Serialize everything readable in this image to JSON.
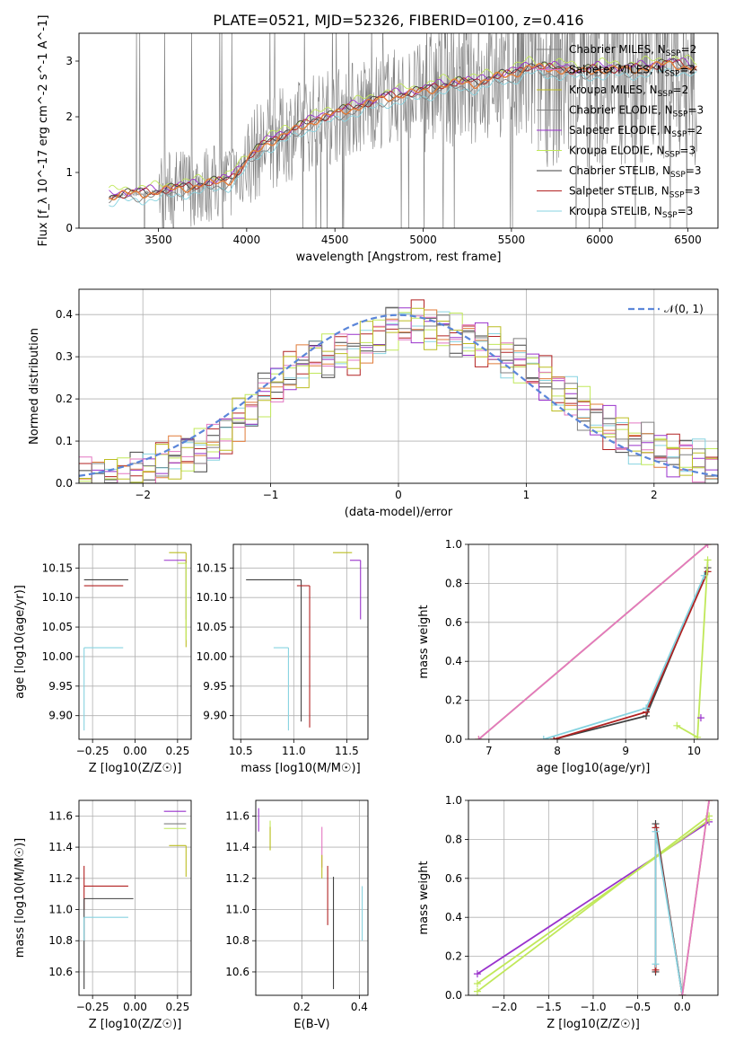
{
  "figure_title": "PLATE=0521, MJD=52326, FIBERID=0100, z=0.416",
  "colors": {
    "Chabrier MILES": "#808080",
    "Salpeter MILES": "#e377c2",
    "Kroupa MILES": "#bcbd22",
    "Chabrier ELODIE": "#7f7f7f",
    "Salpeter ELODIE": "#9932cc",
    "Kroupa ELODIE": "#c0e85a",
    "Chabrier STELIB": "#404040",
    "Salpeter STELIB": "#b22222",
    "Kroupa STELIB": "#87d3e0",
    "data": "#808080",
    "model_main": "#e07b39",
    "normal": "#5b86d9"
  },
  "chart_data": [
    {
      "id": "spectrum",
      "type": "line",
      "title": "PLATE=0521, MJD=52326, FIBERID=0100, z=0.416",
      "xlabel": "wavelength [Angstrom, rest frame]",
      "ylabel": "Flux [f_λ 10^-17 erg cm^-2 s^-1 A^-1]",
      "xlim": [
        3050,
        6670
      ],
      "ylim": [
        0,
        3.5
      ],
      "xticks": [
        3500,
        4000,
        4500,
        5000,
        5500,
        6000,
        6500
      ],
      "yticks": [
        0,
        1,
        2,
        3
      ],
      "grid": false,
      "legend_position": "upper right",
      "series": [
        {
          "name": "Chabrier MILES, N_SSP=2"
        },
        {
          "name": "Salpeter MILES, N_SSP=2"
        },
        {
          "name": "Kroupa MILES, N_SSP=2"
        },
        {
          "name": "Chabrier ELODIE, N_SSP=3"
        },
        {
          "name": "Salpeter ELODIE, N_SSP=2"
        },
        {
          "name": "Kroupa ELODIE, N_SSP=3"
        },
        {
          "name": "Chabrier STELIB, N_SSP=3"
        },
        {
          "name": "Salpeter STELIB, N_SSP=3"
        },
        {
          "name": "Kroupa STELIB, N_SSP=3"
        }
      ],
      "model_curve": {
        "x": [
          3220,
          3300,
          3400,
          3500,
          3600,
          3700,
          3800,
          3900,
          3950,
          4000,
          4100,
          4200,
          4300,
          4400,
          4500,
          4600,
          4700,
          4800,
          4900,
          5000,
          5100,
          5200,
          5300,
          5400,
          5500,
          5600,
          5700,
          5800,
          5900,
          6000,
          6100,
          6200,
          6300,
          6400,
          6500,
          6550
        ],
        "y": [
          0.55,
          0.6,
          0.62,
          0.65,
          0.7,
          0.75,
          0.8,
          0.85,
          1.0,
          1.2,
          1.5,
          1.65,
          1.8,
          1.95,
          2.05,
          2.15,
          2.25,
          2.35,
          2.4,
          2.45,
          2.55,
          2.6,
          2.6,
          2.7,
          2.75,
          2.9,
          2.85,
          2.85,
          2.8,
          2.85,
          2.85,
          2.85,
          2.9,
          2.95,
          2.9,
          2.85
        ]
      }
    },
    {
      "id": "residuals",
      "type": "line",
      "xlabel": "(data-model)/error",
      "ylabel": "Normed distribution",
      "xlim": [
        -2.5,
        2.5
      ],
      "ylim": [
        0,
        0.46
      ],
      "xticks": [
        -2,
        -1,
        0,
        1,
        2
      ],
      "yticks": [
        0.0,
        0.1,
        0.2,
        0.3,
        0.4
      ],
      "grid": true,
      "legend": [
        "𝒩(0, 1)"
      ],
      "legend_position": "upper right",
      "hist_centers": [
        -2.45,
        -2.35,
        -2.25,
        -2.15,
        -2.05,
        -1.95,
        -1.85,
        -1.75,
        -1.65,
        -1.55,
        -1.45,
        -1.35,
        -1.25,
        -1.15,
        -1.05,
        -0.95,
        -0.85,
        -0.75,
        -0.65,
        -0.55,
        -0.45,
        -0.35,
        -0.25,
        -0.15,
        -0.05,
        0.05,
        0.15,
        0.25,
        0.35,
        0.45,
        0.55,
        0.65,
        0.75,
        0.85,
        0.95,
        1.05,
        1.15,
        1.25,
        1.35,
        1.45,
        1.55,
        1.65,
        1.75,
        1.85,
        1.95,
        2.05,
        2.15,
        2.25,
        2.35,
        2.45
      ],
      "hist_values": [
        0.01,
        0.01,
        0.01,
        0.02,
        0.02,
        0.03,
        0.05,
        0.06,
        0.07,
        0.08,
        0.09,
        0.12,
        0.15,
        0.17,
        0.21,
        0.24,
        0.26,
        0.28,
        0.3,
        0.3,
        0.31,
        0.31,
        0.33,
        0.35,
        0.37,
        0.38,
        0.38,
        0.37,
        0.36,
        0.35,
        0.34,
        0.33,
        0.32,
        0.3,
        0.29,
        0.27,
        0.25,
        0.22,
        0.2,
        0.18,
        0.15,
        0.13,
        0.11,
        0.1,
        0.09,
        0.08,
        0.07,
        0.06,
        0.05,
        0.04
      ]
    },
    {
      "id": "age_vs_Z",
      "type": "scatter",
      "xlabel": "Z [log10(Z/Z☉)]",
      "ylabel": "age  [log10(age/yr)]",
      "xlim": [
        -0.33,
        0.33
      ],
      "ylim": [
        9.86,
        10.19
      ],
      "xticks": [
        -0.25,
        0.0,
        0.25
      ],
      "xticklabels": [
        "−0.25",
        "0.00",
        "0.25"
      ],
      "yticks": [
        9.9,
        9.95,
        10.0,
        10.05,
        10.1,
        10.15
      ],
      "grid": true,
      "points": [
        {
          "series": "Chabrier STELIB",
          "x": -0.3,
          "y": 10.13,
          "xerr": [
            0.0,
            0.26
          ]
        },
        {
          "series": "Salpeter STELIB",
          "x": -0.3,
          "y": 10.12,
          "xerr": [
            0.0,
            0.23
          ]
        },
        {
          "series": "Kroupa STELIB",
          "x": -0.3,
          "y": 10.015,
          "xerr": [
            0.0,
            0.23
          ],
          "yerr": [
            0.14,
            0.0
          ]
        },
        {
          "series": "Salpeter ELODIE",
          "x": 0.3,
          "y": 10.163,
          "xerr": [
            0.13,
            0.0
          ],
          "yerr": [
            0.1,
            0.0
          ]
        },
        {
          "series": "Kroupa MILES",
          "x": 0.3,
          "y": 10.176,
          "xerr": [
            0.1,
            0.0
          ],
          "yerr": [
            0.16,
            0.0
          ]
        },
        {
          "series": "Kroupa ELODIE",
          "x": 0.3,
          "y": 10.158,
          "xerr": [
            0.05,
            0.0
          ],
          "yerr": [
            0.13,
            0.0
          ]
        }
      ]
    },
    {
      "id": "age_vs_mass",
      "type": "scatter",
      "xlabel": "mass [log10(M/M☉)]",
      "xlim": [
        10.43,
        11.7
      ],
      "ylim": [
        9.86,
        10.19
      ],
      "xticks": [
        10.5,
        11.0,
        11.5
      ],
      "yticks": [
        9.9,
        9.95,
        10.0,
        10.05,
        10.1,
        10.15
      ],
      "grid": true,
      "points": [
        {
          "series": "Chabrier STELIB",
          "x": 11.07,
          "y": 10.13,
          "xerr": [
            0.52,
            0.0
          ],
          "yerr": [
            0.24,
            0.0
          ]
        },
        {
          "series": "Salpeter STELIB",
          "x": 11.15,
          "y": 10.12,
          "xerr": [
            0.12,
            0.0
          ],
          "yerr": [
            0.24,
            0.0
          ]
        },
        {
          "series": "Kroupa STELIB",
          "x": 10.95,
          "y": 10.015,
          "xerr": [
            0.14,
            0.0
          ],
          "yerr": [
            0.14,
            0.0
          ]
        },
        {
          "series": "Kroupa MILES",
          "x": 11.55,
          "y": 10.176,
          "xerr": [
            0.18,
            0.0
          ]
        },
        {
          "series": "Salpeter ELODIE",
          "x": 11.63,
          "y": 10.163,
          "xerr": [
            0.1,
            0.0
          ],
          "yerr": [
            0.1,
            0.0
          ]
        }
      ]
    },
    {
      "id": "weight_vs_age",
      "type": "line",
      "xlabel": "age  [log10(age/yr)]",
      "ylabel": "mass weight",
      "xlim": [
        6.7,
        10.35
      ],
      "ylim": [
        0,
        1.0
      ],
      "xticks": [
        7,
        8,
        9,
        10
      ],
      "yticks": [
        0.0,
        0.2,
        0.4,
        0.6,
        0.8,
        1.0
      ],
      "grid": true,
      "series": [
        {
          "series": "Kroupa MILES",
          "x": [
            6.85,
            10.2
          ],
          "y": [
            0.0,
            1.0
          ]
        },
        {
          "series": "Salpeter MILES",
          "x": [
            6.85,
            10.2
          ],
          "y": [
            0.0,
            1.0
          ]
        },
        {
          "series": "Chabrier STELIB",
          "x": [
            7.95,
            9.3,
            10.2
          ],
          "y": [
            0.0,
            0.12,
            0.88
          ]
        },
        {
          "series": "Salpeter STELIB",
          "x": [
            7.95,
            9.3,
            10.2
          ],
          "y": [
            0.0,
            0.14,
            0.86
          ]
        },
        {
          "series": "Kroupa STELIB",
          "x": [
            7.8,
            9.3,
            10.15
          ],
          "y": [
            0.0,
            0.16,
            0.84
          ]
        },
        {
          "series": "Kroupa ELODIE",
          "x": [
            9.75,
            10.05,
            10.2
          ],
          "y": [
            0.07,
            0.01,
            0.92
          ]
        },
        {
          "series": "Salpeter ELODIE",
          "x": [
            10.1
          ],
          "y": [
            0.11
          ]
        }
      ]
    },
    {
      "id": "mass_vs_Z",
      "type": "scatter",
      "xlabel": "Z [log10(Z/Z☉)]",
      "ylabel": "mass [log10(M/M☉)]",
      "xlim": [
        -0.33,
        0.33
      ],
      "ylim": [
        10.45,
        11.7
      ],
      "xticks": [
        -0.25,
        0.0,
        0.25
      ],
      "xticklabels": [
        "−0.25",
        "0.00",
        "0.25"
      ],
      "yticks": [
        10.6,
        10.8,
        11.0,
        11.2,
        11.4,
        11.6
      ],
      "grid": true,
      "points": [
        {
          "series": "Salpeter STELIB",
          "x": -0.3,
          "y": 11.15,
          "xerr": [
            0.0,
            0.26
          ],
          "yerr": [
            0.15,
            0.13
          ]
        },
        {
          "series": "Chabrier STELIB",
          "x": -0.3,
          "y": 11.07,
          "xerr": [
            0.0,
            0.29
          ],
          "yerr": [
            0.58,
            0.0
          ]
        },
        {
          "series": "Kroupa STELIB",
          "x": -0.3,
          "y": 10.95,
          "xerr": [
            0.0,
            0.26
          ],
          "yerr": [
            0.15,
            0.0
          ]
        },
        {
          "series": "Salpeter ELODIE",
          "x": 0.3,
          "y": 11.63,
          "xerr": [
            0.13,
            0.0
          ]
        },
        {
          "series": "Chabrier ELODIE",
          "x": 0.3,
          "y": 11.55,
          "xerr": [
            0.13,
            0.0
          ]
        },
        {
          "series": "Kroupa ELODIE",
          "x": 0.3,
          "y": 11.52,
          "xerr": [
            0.13,
            0.0
          ]
        },
        {
          "series": "Kroupa MILES",
          "x": 0.3,
          "y": 11.41,
          "xerr": [
            0.1,
            0.0
          ],
          "yerr": [
            0.2,
            0.0
          ]
        }
      ]
    },
    {
      "id": "mass_vs_ebv",
      "type": "scatter",
      "xlabel": "E(B-V)",
      "xlim": [
        0.04,
        0.43
      ],
      "ylim": [
        10.45,
        11.7
      ],
      "xticks": [
        0.2,
        0.4
      ],
      "yticks": [
        10.6,
        10.8,
        11.0,
        11.2,
        11.4,
        11.6
      ],
      "grid": true,
      "points": [
        {
          "series": "Salpeter ELODIE",
          "x": 0.05,
          "y": 11.6,
          "yerr": [
            0.1,
            0.05
          ]
        },
        {
          "series": "Kroupa ELODIE",
          "x": 0.09,
          "y": 11.5,
          "yerr": [
            0.12,
            0.07
          ]
        },
        {
          "series": "Kroupa MILES",
          "x": 0.09,
          "y": 11.48,
          "yerr": [
            0.1,
            0.05
          ]
        },
        {
          "series": "Salpeter MILES",
          "x": 0.27,
          "y": 11.4,
          "yerr": [
            0.13,
            0.13
          ]
        },
        {
          "series": "Kroupa MILES",
          "x": 0.27,
          "y": 11.35,
          "yerr": [
            0.15,
            0.0
          ]
        },
        {
          "series": "Salpeter STELIB",
          "x": 0.29,
          "y": 11.1,
          "yerr": [
            0.2,
            0.18
          ]
        },
        {
          "series": "Chabrier STELIB",
          "x": 0.31,
          "y": 10.85,
          "yerr": [
            0.36,
            0.36
          ]
        },
        {
          "series": "Kroupa STELIB",
          "x": 0.41,
          "y": 10.95,
          "yerr": [
            0.15,
            0.2
          ]
        }
      ]
    },
    {
      "id": "weight_vs_Z",
      "type": "line",
      "xlabel": "Z [log10(Z/Z☉)]",
      "ylabel": "mass weight",
      "xlim": [
        -2.4,
        0.4
      ],
      "ylim": [
        0,
        1.0
      ],
      "xticks": [
        -2.0,
        -1.5,
        -1.0,
        -0.5,
        0.0
      ],
      "xticklabels": [
        "−2.0",
        "−1.5",
        "−1.0",
        "−0.5",
        "0.0"
      ],
      "yticks": [
        0.0,
        0.2,
        0.4,
        0.6,
        0.8,
        1.0
      ],
      "grid": true,
      "series": [
        {
          "series": "Salpeter ELODIE",
          "x": [
            -2.3,
            0.3
          ],
          "y": [
            0.11,
            0.89
          ]
        },
        {
          "series": "Kroupa ELODIE",
          "x": [
            -2.3,
            0.3
          ],
          "y": [
            0.02,
            0.92
          ]
        },
        {
          "series": "Kroupa ELODIE b",
          "x": [
            -2.3,
            0.3
          ],
          "y": [
            0.06,
            0.9
          ]
        },
        {
          "series": "Chabrier STELIB",
          "x": [
            -0.3,
            -0.3,
            0.0
          ],
          "y": [
            0.12,
            0.88,
            0.0
          ]
        },
        {
          "series": "Salpeter STELIB",
          "x": [
            -0.3,
            -0.3,
            0.0
          ],
          "y": [
            0.13,
            0.86,
            0.0
          ]
        },
        {
          "series": "Kroupa STELIB",
          "x": [
            -0.3,
            -0.3,
            0.0
          ],
          "y": [
            0.16,
            0.84,
            0.0
          ]
        },
        {
          "series": "Kroupa MILES",
          "x": [
            0.0,
            0.3
          ],
          "y": [
            0.0,
            1.0
          ]
        },
        {
          "series": "Salpeter MILES",
          "x": [
            0.0,
            0.3
          ],
          "y": [
            0.0,
            1.0
          ]
        }
      ]
    }
  ]
}
